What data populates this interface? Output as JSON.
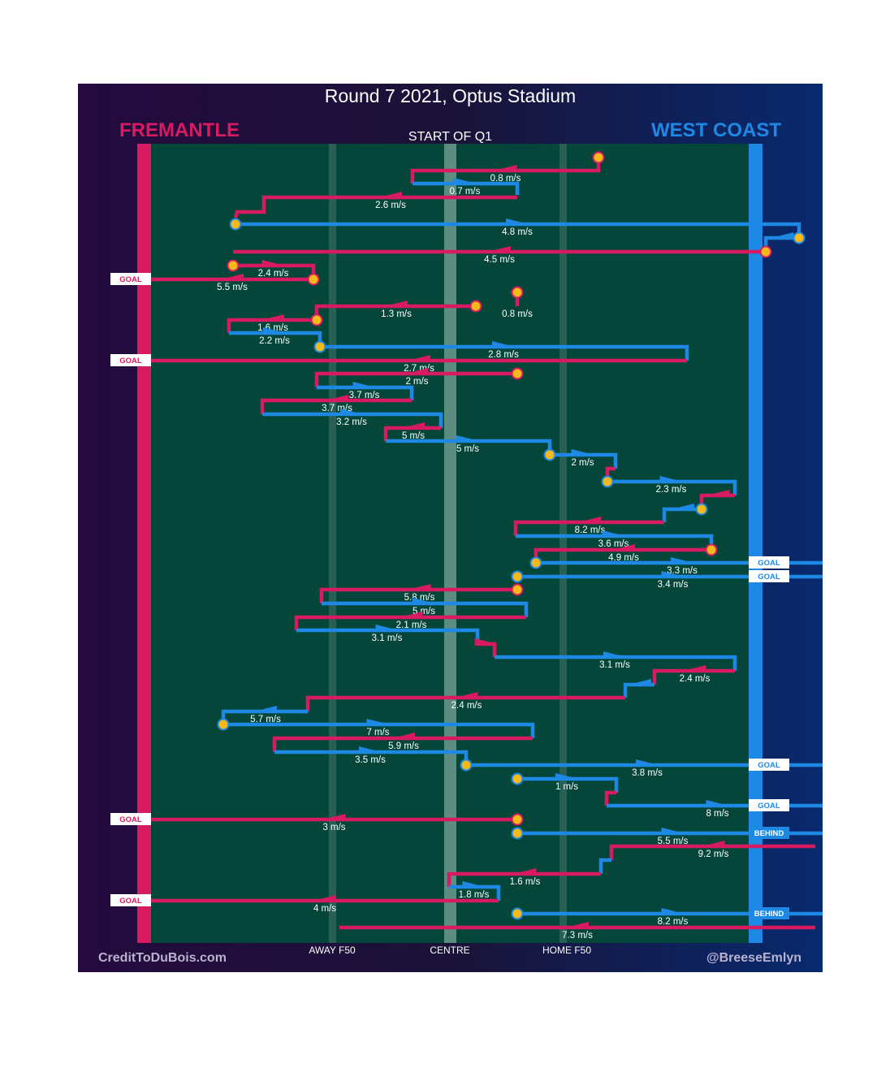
{
  "title": "Round 7 2021, Optus Stadium",
  "subtitle": "START OF Q1",
  "teams": {
    "home": {
      "name": "FREMANTLE",
      "color": "#d81b60"
    },
    "away": {
      "name": "WEST COAST",
      "color": "#1e88e5"
    }
  },
  "colors": {
    "field": "#04473a",
    "centre_band": "#5d8c80",
    "f50_band": "#2a5f54",
    "marker": "#f6b91a"
  },
  "credits": {
    "left": "CreditToDuBois.com",
    "right": "@BreeseEmlyn"
  },
  "chart_data": {
    "type": "line",
    "xlabel": "",
    "ylabel": "",
    "x_ticks": [
      "AWAY F50",
      "CENTRE",
      "HOME F50"
    ],
    "grid": false,
    "legend": "none",
    "series": [
      {
        "team": "fremantle",
        "start_marker": true,
        "path": [
          [
            551,
            194
          ],
          [
            551,
            210
          ],
          [
            322,
            210
          ],
          [
            322,
            223
          ],
          [
            321,
            226
          ]
        ],
        "label": "0.8 m/s"
      },
      {
        "team": "westcoast",
        "start_marker": false,
        "path": [
          [
            322,
            226
          ],
          [
            451,
            226
          ],
          [
            451,
            240
          ]
        ],
        "label": "0.7 m/s"
      },
      {
        "team": "fremantle",
        "start_marker": false,
        "path": [
          [
            451,
            243
          ],
          [
            139,
            243
          ],
          [
            139,
            261
          ],
          [
            106,
            261
          ],
          [
            104,
            268
          ]
        ],
        "label": "2.6 m/s"
      },
      {
        "team": "westcoast",
        "start_marker": true,
        "path": [
          [
            104,
            276
          ],
          [
            798,
            276
          ],
          [
            798,
            293
          ]
        ],
        "label": "4.8 m/s"
      },
      {
        "team": "westcoast",
        "start_marker": true,
        "path": [
          [
            798,
            293
          ],
          [
            757,
            293
          ],
          [
            757,
            310
          ]
        ],
        "label": ""
      },
      {
        "team": "fremantle",
        "start_marker": true,
        "path": [
          [
            757,
            310
          ],
          [
            101,
            310
          ]
        ],
        "label": "4.5 m/s"
      },
      {
        "team": "fremantle",
        "start_marker": true,
        "path": [
          [
            101,
            327
          ],
          [
            200,
            327
          ],
          [
            200,
            344
          ]
        ],
        "label": "2.4 m/s"
      },
      {
        "team": "fremantle",
        "start_marker": true,
        "path": [
          [
            200,
            344
          ],
          [
            0,
            344
          ]
        ],
        "label": "5.5 m/s",
        "result": "GOAL"
      },
      {
        "team": "fremantle",
        "start_marker": true,
        "path": [
          [
            451,
            360
          ],
          [
            451,
            377
          ]
        ],
        "label": "0.8 m/s"
      },
      {
        "team": "fremantle",
        "start_marker": true,
        "path": [
          [
            400,
            377
          ],
          [
            204,
            377
          ],
          [
            204,
            394
          ]
        ],
        "label": "1.3 m/s"
      },
      {
        "team": "fremantle",
        "start_marker": true,
        "path": [
          [
            204,
            394
          ],
          [
            96,
            394
          ],
          [
            96,
            410
          ]
        ],
        "label": "1.6 m/s"
      },
      {
        "team": "westcoast",
        "start_marker": false,
        "path": [
          [
            96,
            410
          ],
          [
            208,
            410
          ],
          [
            208,
            427
          ]
        ],
        "label": "2.2 m/s"
      },
      {
        "team": "westcoast",
        "start_marker": true,
        "path": [
          [
            208,
            427
          ],
          [
            660,
            427
          ],
          [
            660,
            444
          ]
        ],
        "label": "2.8 m/s"
      },
      {
        "team": "fremantle",
        "start_marker": false,
        "path": [
          [
            660,
            444
          ],
          [
            0,
            444
          ]
        ],
        "label": "2.7 m/s",
        "result": "GOAL"
      },
      {
        "team": "fremantle",
        "start_marker": true,
        "path": [
          [
            451,
            460
          ],
          [
            204,
            460
          ],
          [
            204,
            477
          ]
        ],
        "label": "2 m/s"
      },
      {
        "team": "westcoast",
        "start_marker": false,
        "path": [
          [
            204,
            477
          ],
          [
            321,
            477
          ],
          [
            321,
            493
          ]
        ],
        "label": "3.7 m/s"
      },
      {
        "team": "fremantle",
        "start_marker": false,
        "path": [
          [
            321,
            493
          ],
          [
            137,
            493
          ],
          [
            137,
            510
          ]
        ],
        "label": "3.7 m/s"
      },
      {
        "team": "westcoast",
        "start_marker": false,
        "path": [
          [
            137,
            510
          ],
          [
            357,
            510
          ],
          [
            357,
            527
          ]
        ],
        "label": "3.2 m/s"
      },
      {
        "team": "fremantle",
        "start_marker": false,
        "path": [
          [
            357,
            527
          ],
          [
            289,
            527
          ],
          [
            289,
            543
          ]
        ],
        "label": "5 m/s"
      },
      {
        "team": "westcoast",
        "start_marker": false,
        "path": [
          [
            289,
            543
          ],
          [
            491,
            543
          ],
          [
            491,
            560
          ]
        ],
        "label": "5 m/s"
      },
      {
        "team": "westcoast",
        "start_marker": true,
        "path": [
          [
            491,
            560
          ],
          [
            572,
            560
          ],
          [
            572,
            577
          ]
        ],
        "label": "2 m/s"
      },
      {
        "team": "fremantle",
        "start_marker": false,
        "path": [
          [
            572,
            577
          ],
          [
            562,
            577
          ],
          [
            562,
            593
          ]
        ],
        "label": ""
      },
      {
        "team": "westcoast",
        "start_marker": true,
        "path": [
          [
            562,
            593
          ],
          [
            719,
            593
          ],
          [
            719,
            610
          ]
        ],
        "label": "2.3 m/s"
      },
      {
        "team": "fremantle",
        "start_marker": false,
        "path": [
          [
            719,
            610
          ],
          [
            678,
            610
          ],
          [
            678,
            627
          ]
        ],
        "label": ""
      },
      {
        "team": "westcoast",
        "start_marker": true,
        "path": [
          [
            678,
            627
          ],
          [
            632,
            627
          ],
          [
            632,
            643
          ]
        ],
        "label": ""
      },
      {
        "team": "fremantle",
        "start_marker": false,
        "path": [
          [
            632,
            643
          ],
          [
            449,
            643
          ],
          [
            449,
            660
          ]
        ],
        "label": "8.2 m/s"
      },
      {
        "team": "westcoast",
        "start_marker": false,
        "path": [
          [
            449,
            660
          ],
          [
            690,
            660
          ],
          [
            690,
            677
          ]
        ],
        "label": "3.6 m/s"
      },
      {
        "team": "fremantle",
        "start_marker": true,
        "path": [
          [
            690,
            677
          ],
          [
            474,
            677
          ],
          [
            474,
            693
          ]
        ],
        "label": "4.9 m/s"
      },
      {
        "team": "westcoast",
        "start_marker": true,
        "path": [
          [
            474,
            693
          ],
          [
            834,
            693
          ]
        ],
        "label": "3.3 m/s",
        "result": "GOAL"
      },
      {
        "team": "westcoast",
        "start_marker": true,
        "path": [
          [
            451,
            710
          ],
          [
            834,
            710
          ]
        ],
        "label": "3.4 m/s",
        "result": "GOAL"
      },
      {
        "team": "fremantle",
        "start_marker": true,
        "path": [
          [
            451,
            726
          ],
          [
            210,
            726
          ],
          [
            210,
            743
          ]
        ],
        "label": "5.8 m/s"
      },
      {
        "team": "westcoast",
        "start_marker": false,
        "path": [
          [
            210,
            743
          ],
          [
            462,
            743
          ],
          [
            462,
            760
          ]
        ],
        "label": "5 m/s"
      },
      {
        "team": "fremantle",
        "start_marker": false,
        "path": [
          [
            462,
            760
          ],
          [
            179,
            760
          ],
          [
            179,
            776
          ]
        ],
        "label": "2.1 m/s"
      },
      {
        "team": "westcoast",
        "start_marker": false,
        "path": [
          [
            179,
            776
          ],
          [
            402,
            776
          ],
          [
            402,
            793
          ]
        ],
        "label": "3.1 m/s"
      },
      {
        "team": "fremantle",
        "start_marker": false,
        "path": [
          [
            402,
            793
          ],
          [
            423,
            793
          ],
          [
            423,
            809
          ]
        ],
        "label": ""
      },
      {
        "team": "westcoast",
        "start_marker": false,
        "path": [
          [
            423,
            809
          ],
          [
            719,
            809
          ],
          [
            719,
            826
          ]
        ],
        "label": "3.1 m/s"
      },
      {
        "team": "fremantle",
        "start_marker": false,
        "path": [
          [
            719,
            826
          ],
          [
            620,
            826
          ],
          [
            620,
            843
          ]
        ],
        "label": "2.4 m/s"
      },
      {
        "team": "westcoast",
        "start_marker": false,
        "path": [
          [
            620,
            843
          ],
          [
            584,
            843
          ],
          [
            584,
            859
          ]
        ],
        "label": ""
      },
      {
        "team": "fremantle",
        "start_marker": false,
        "path": [
          [
            584,
            859
          ],
          [
            193,
            859
          ],
          [
            193,
            876
          ]
        ],
        "label": "2.4 m/s"
      },
      {
        "team": "westcoast",
        "start_marker": false,
        "path": [
          [
            193,
            876
          ],
          [
            89,
            876
          ],
          [
            89,
            892
          ]
        ],
        "label": "5.7 m/s"
      },
      {
        "team": "westcoast",
        "start_marker": true,
        "path": [
          [
            89,
            892
          ],
          [
            470,
            892
          ],
          [
            470,
            909
          ]
        ],
        "label": "7 m/s"
      },
      {
        "team": "fremantle",
        "start_marker": false,
        "path": [
          [
            470,
            909
          ],
          [
            152,
            909
          ],
          [
            152,
            926
          ]
        ],
        "label": "5.9 m/s"
      },
      {
        "team": "westcoast",
        "start_marker": false,
        "path": [
          [
            152,
            926
          ],
          [
            388,
            926
          ],
          [
            388,
            942
          ]
        ],
        "label": "3.5 m/s"
      },
      {
        "team": "westcoast",
        "start_marker": true,
        "path": [
          [
            388,
            942
          ],
          [
            834,
            942
          ]
        ],
        "label": "3.8 m/s",
        "result": "GOAL"
      },
      {
        "team": "westcoast",
        "start_marker": true,
        "path": [
          [
            451,
            959
          ],
          [
            573,
            959
          ],
          [
            573,
            976
          ]
        ],
        "label": "1 m/s"
      },
      {
        "team": "fremantle",
        "start_marker": false,
        "path": [
          [
            573,
            976
          ],
          [
            561,
            976
          ],
          [
            561,
            992
          ]
        ],
        "label": ""
      },
      {
        "team": "westcoast",
        "start_marker": false,
        "path": [
          [
            561,
            992
          ],
          [
            834,
            992
          ]
        ],
        "label": "8 m/s",
        "result": "GOAL"
      },
      {
        "team": "fremantle",
        "start_marker": true,
        "path": [
          [
            451,
            1009
          ],
          [
            0,
            1009
          ]
        ],
        "label": "3 m/s",
        "result": "GOAL"
      },
      {
        "team": "westcoast",
        "start_marker": true,
        "path": [
          [
            451,
            1026
          ],
          [
            834,
            1026
          ]
        ],
        "label": "5.5 m/s",
        "result": "BEHIND"
      },
      {
        "team": "fremantle",
        "start_marker": false,
        "path": [
          [
            818,
            1042
          ],
          [
            567,
            1042
          ],
          [
            567,
            1059
          ]
        ],
        "label": "9.2 m/s"
      },
      {
        "team": "westcoast",
        "start_marker": false,
        "path": [
          [
            567,
            1059
          ],
          [
            554,
            1059
          ],
          [
            554,
            1076
          ]
        ],
        "label": ""
      },
      {
        "team": "fremantle",
        "start_marker": false,
        "path": [
          [
            554,
            1076
          ],
          [
            367,
            1076
          ],
          [
            367,
            1092
          ]
        ],
        "label": "1.6 m/s"
      },
      {
        "team": "westcoast",
        "start_marker": false,
        "path": [
          [
            367,
            1092
          ],
          [
            428,
            1092
          ],
          [
            428,
            1109
          ]
        ],
        "label": "1.8 m/s"
      },
      {
        "team": "fremantle",
        "start_marker": false,
        "path": [
          [
            428,
            1109
          ],
          [
            0,
            1109
          ]
        ],
        "label": "4 m/s",
        "result": "GOAL"
      },
      {
        "team": "westcoast",
        "start_marker": true,
        "path": [
          [
            451,
            1125
          ],
          [
            834,
            1125
          ]
        ],
        "label": "8.2 m/s",
        "result": "BEHIND"
      },
      {
        "team": "fremantle",
        "start_marker": false,
        "path": [
          [
            818,
            1142
          ],
          [
            232,
            1142
          ]
        ],
        "label": "7.3 m/s"
      }
    ]
  }
}
